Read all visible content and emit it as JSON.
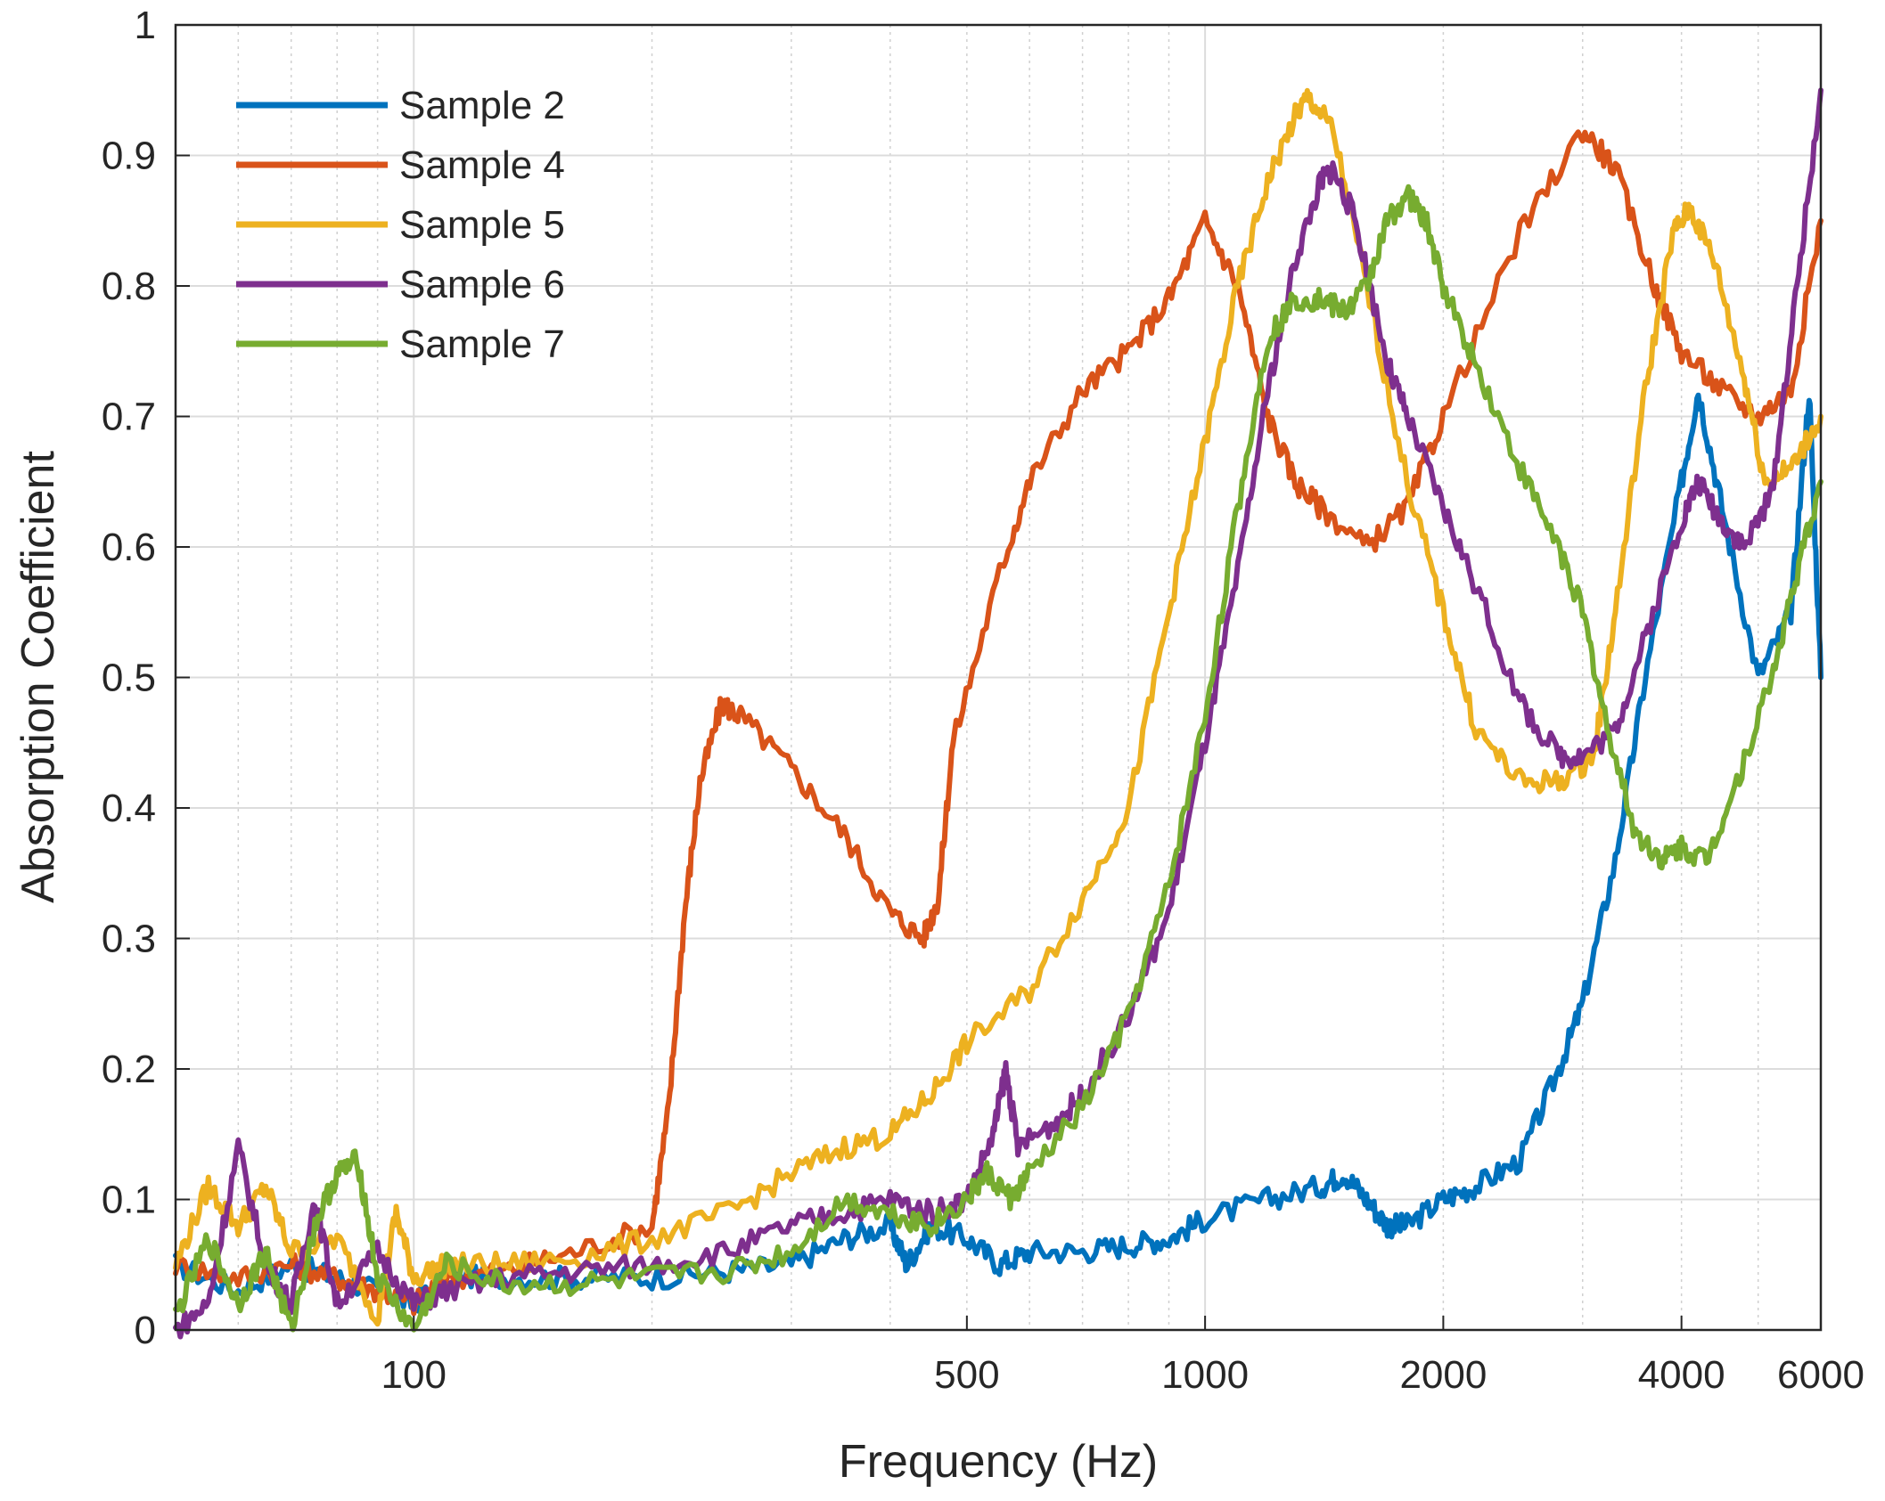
{
  "chart_data": {
    "type": "line",
    "title": "",
    "xlabel": "Frequency (Hz)",
    "ylabel": "Absorption Coefficient",
    "xscale": "log",
    "xlim": [
      50,
      6000
    ],
    "ylim": [
      0,
      1
    ],
    "xticks": [
      100,
      500,
      1000,
      2000,
      4000,
      6000
    ],
    "xtick_labels": [
      "100",
      "500",
      "1000",
      "2000",
      "4000",
      "6000"
    ],
    "yticks": [
      0,
      0.1,
      0.2,
      0.3,
      0.4,
      0.5,
      0.6,
      0.7,
      0.8,
      0.9,
      1
    ],
    "ytick_labels": [
      "0",
      "0.1",
      "0.2",
      "0.3",
      "0.4",
      "0.5",
      "0.6",
      "0.7",
      "0.8",
      "0.9",
      "1"
    ],
    "grid": true,
    "legend_position": "top-left",
    "series": [
      {
        "name": "Sample 2",
        "color": "#0072BD",
        "points": [
          [
            50,
            0.05
          ],
          [
            60,
            0.03
          ],
          [
            70,
            0.05
          ],
          [
            80,
            0.04
          ],
          [
            90,
            0.03
          ],
          [
            100,
            0.02
          ],
          [
            110,
            0.04
          ],
          [
            130,
            0.04
          ],
          [
            160,
            0.04
          ],
          [
            200,
            0.04
          ],
          [
            250,
            0.045
          ],
          [
            300,
            0.05
          ],
          [
            350,
            0.07
          ],
          [
            400,
            0.08
          ],
          [
            420,
            0.05
          ],
          [
            450,
            0.08
          ],
          [
            500,
            0.07
          ],
          [
            550,
            0.05
          ],
          [
            600,
            0.06
          ],
          [
            700,
            0.06
          ],
          [
            800,
            0.065
          ],
          [
            900,
            0.07
          ],
          [
            1000,
            0.085
          ],
          [
            1200,
            0.1
          ],
          [
            1400,
            0.11
          ],
          [
            1500,
            0.12
          ],
          [
            1600,
            0.1
          ],
          [
            1700,
            0.08
          ],
          [
            1800,
            0.08
          ],
          [
            2000,
            0.1
          ],
          [
            2200,
            0.11
          ],
          [
            2500,
            0.13
          ],
          [
            2800,
            0.2
          ],
          [
            3000,
            0.25
          ],
          [
            3300,
            0.36
          ],
          [
            3600,
            0.5
          ],
          [
            4000,
            0.65
          ],
          [
            4200,
            0.72
          ],
          [
            4500,
            0.63
          ],
          [
            5000,
            0.5
          ],
          [
            5500,
            0.55
          ],
          [
            5800,
            0.72
          ],
          [
            6000,
            0.5
          ]
        ]
      },
      {
        "name": "Sample 4",
        "color": "#D95319",
        "points": [
          [
            50,
            0.05
          ],
          [
            60,
            0.04
          ],
          [
            70,
            0.05
          ],
          [
            80,
            0.04
          ],
          [
            90,
            0.03
          ],
          [
            100,
            0.02
          ],
          [
            110,
            0.04
          ],
          [
            130,
            0.045
          ],
          [
            160,
            0.06
          ],
          [
            200,
            0.08
          ],
          [
            210,
            0.17
          ],
          [
            220,
            0.32
          ],
          [
            230,
            0.42
          ],
          [
            245,
            0.48
          ],
          [
            260,
            0.47
          ],
          [
            300,
            0.43
          ],
          [
            350,
            0.38
          ],
          [
            400,
            0.32
          ],
          [
            440,
            0.3
          ],
          [
            460,
            0.33
          ],
          [
            480,
            0.45
          ],
          [
            550,
            0.58
          ],
          [
            600,
            0.65
          ],
          [
            700,
            0.72
          ],
          [
            800,
            0.75
          ],
          [
            900,
            0.79
          ],
          [
            1000,
            0.85
          ],
          [
            1100,
            0.8
          ],
          [
            1200,
            0.7
          ],
          [
            1300,
            0.65
          ],
          [
            1400,
            0.63
          ],
          [
            1600,
            0.6
          ],
          [
            1800,
            0.63
          ],
          [
            2000,
            0.7
          ],
          [
            2500,
            0.84
          ],
          [
            3000,
            0.92
          ],
          [
            3300,
            0.89
          ],
          [
            3700,
            0.8
          ],
          [
            4000,
            0.75
          ],
          [
            4500,
            0.72
          ],
          [
            5000,
            0.7
          ],
          [
            5500,
            0.72
          ],
          [
            6000,
            0.85
          ]
        ]
      },
      {
        "name": "Sample 5",
        "color": "#EDB120",
        "points": [
          [
            50,
            0.05
          ],
          [
            55,
            0.11
          ],
          [
            60,
            0.08
          ],
          [
            65,
            0.11
          ],
          [
            70,
            0.06
          ],
          [
            80,
            0.07
          ],
          [
            90,
            0.01
          ],
          [
            95,
            0.09
          ],
          [
            100,
            0.04
          ],
          [
            110,
            0.05
          ],
          [
            130,
            0.05
          ],
          [
            160,
            0.055
          ],
          [
            200,
            0.07
          ],
          [
            250,
            0.09
          ],
          [
            300,
            0.12
          ],
          [
            350,
            0.14
          ],
          [
            400,
            0.15
          ],
          [
            450,
            0.18
          ],
          [
            500,
            0.22
          ],
          [
            600,
            0.26
          ],
          [
            700,
            0.33
          ],
          [
            800,
            0.4
          ],
          [
            900,
            0.55
          ],
          [
            1000,
            0.68
          ],
          [
            1100,
            0.8
          ],
          [
            1200,
            0.88
          ],
          [
            1300,
            0.93
          ],
          [
            1350,
            0.945
          ],
          [
            1450,
            0.92
          ],
          [
            1600,
            0.8
          ],
          [
            1800,
            0.65
          ],
          [
            2000,
            0.55
          ],
          [
            2200,
            0.46
          ],
          [
            2500,
            0.42
          ],
          [
            2800,
            0.42
          ],
          [
            3100,
            0.44
          ],
          [
            3300,
            0.55
          ],
          [
            3600,
            0.72
          ],
          [
            3900,
            0.84
          ],
          [
            4100,
            0.86
          ],
          [
            4400,
            0.82
          ],
          [
            4800,
            0.73
          ],
          [
            5100,
            0.65
          ],
          [
            5500,
            0.66
          ],
          [
            6000,
            0.7
          ]
        ]
      },
      {
        "name": "Sample 6",
        "color": "#7E2F8E",
        "points": [
          [
            50,
            0.0
          ],
          [
            55,
            0.02
          ],
          [
            60,
            0.14
          ],
          [
            65,
            0.05
          ],
          [
            70,
            0.02
          ],
          [
            75,
            0.1
          ],
          [
            80,
            0.02
          ],
          [
            90,
            0.06
          ],
          [
            100,
            0.02
          ],
          [
            110,
            0.03
          ],
          [
            130,
            0.04
          ],
          [
            160,
            0.045
          ],
          [
            200,
            0.05
          ],
          [
            250,
            0.06
          ],
          [
            300,
            0.08
          ],
          [
            350,
            0.09
          ],
          [
            400,
            0.1
          ],
          [
            450,
            0.09
          ],
          [
            500,
            0.1
          ],
          [
            540,
            0.15
          ],
          [
            560,
            0.2
          ],
          [
            580,
            0.14
          ],
          [
            650,
            0.16
          ],
          [
            700,
            0.18
          ],
          [
            800,
            0.24
          ],
          [
            900,
            0.32
          ],
          [
            1000,
            0.45
          ],
          [
            1100,
            0.58
          ],
          [
            1200,
            0.72
          ],
          [
            1300,
            0.82
          ],
          [
            1400,
            0.88
          ],
          [
            1450,
            0.89
          ],
          [
            1550,
            0.85
          ],
          [
            1700,
            0.74
          ],
          [
            1800,
            0.7
          ],
          [
            2000,
            0.63
          ],
          [
            2200,
            0.57
          ],
          [
            2500,
            0.48
          ],
          [
            2800,
            0.44
          ],
          [
            3000,
            0.44
          ],
          [
            3300,
            0.46
          ],
          [
            3600,
            0.53
          ],
          [
            4000,
            0.62
          ],
          [
            4200,
            0.65
          ],
          [
            4500,
            0.62
          ],
          [
            4800,
            0.6
          ],
          [
            5200,
            0.64
          ],
          [
            5600,
            0.8
          ],
          [
            6000,
            0.95
          ]
        ]
      },
      {
        "name": "Sample 7",
        "color": "#77AC30",
        "points": [
          [
            50,
            0.01
          ],
          [
            55,
            0.07
          ],
          [
            60,
            0.02
          ],
          [
            65,
            0.06
          ],
          [
            70,
            0.0
          ],
          [
            75,
            0.08
          ],
          [
            80,
            0.12
          ],
          [
            85,
            0.13
          ],
          [
            90,
            0.04
          ],
          [
            100,
            0.0
          ],
          [
            110,
            0.05
          ],
          [
            130,
            0.035
          ],
          [
            160,
            0.035
          ],
          [
            200,
            0.04
          ],
          [
            250,
            0.045
          ],
          [
            300,
            0.06
          ],
          [
            350,
            0.1
          ],
          [
            400,
            0.09
          ],
          [
            450,
            0.08
          ],
          [
            500,
            0.1
          ],
          [
            530,
            0.12
          ],
          [
            570,
            0.1
          ],
          [
            600,
            0.12
          ],
          [
            700,
            0.17
          ],
          [
            800,
            0.24
          ],
          [
            900,
            0.34
          ],
          [
            1000,
            0.47
          ],
          [
            1100,
            0.63
          ],
          [
            1200,
            0.76
          ],
          [
            1300,
            0.79
          ],
          [
            1400,
            0.79
          ],
          [
            1500,
            0.78
          ],
          [
            1600,
            0.8
          ],
          [
            1700,
            0.85
          ],
          [
            1800,
            0.87
          ],
          [
            1900,
            0.85
          ],
          [
            2000,
            0.8
          ],
          [
            2200,
            0.74
          ],
          [
            2500,
            0.66
          ],
          [
            2800,
            0.6
          ],
          [
            3000,
            0.55
          ],
          [
            3200,
            0.47
          ],
          [
            3500,
            0.38
          ],
          [
            3800,
            0.36
          ],
          [
            4000,
            0.37
          ],
          [
            4300,
            0.36
          ],
          [
            4700,
            0.42
          ],
          [
            5200,
            0.5
          ],
          [
            5600,
            0.58
          ],
          [
            6000,
            0.65
          ]
        ]
      }
    ]
  }
}
